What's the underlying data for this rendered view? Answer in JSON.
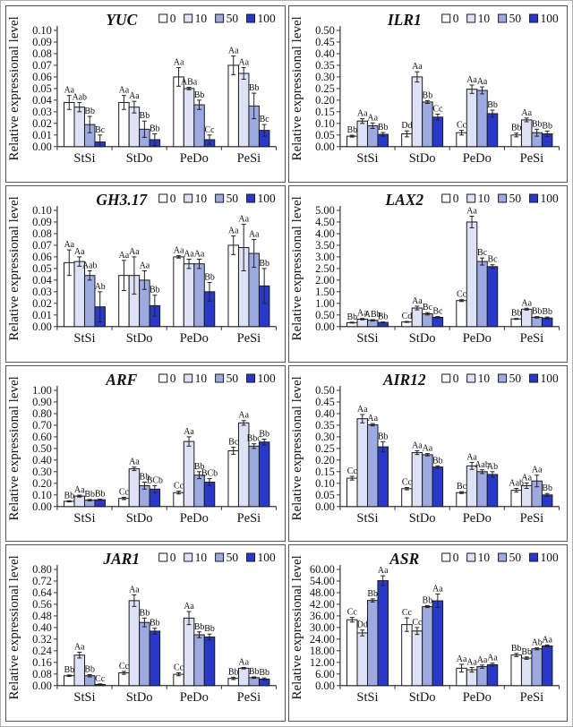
{
  "figure": {
    "ylabel": "Relative expressional level",
    "legend_labels": [
      "0",
      "10",
      "50",
      "100"
    ],
    "legend_position": "top-right",
    "categories": [
      "StSi",
      "StDo",
      "PeDo",
      "PeSi"
    ],
    "colors": {
      "series": [
        "#ffffff",
        "#dde2f6",
        "#9daae2",
        "#2838c8"
      ],
      "bar_stroke": "#1b1b1b",
      "axis": "#333333",
      "error_bar": "#222222",
      "panel_border": "#555555",
      "text": "#111111"
    }
  },
  "chart_data": [
    {
      "type": "bar",
      "title": "YUC",
      "ylabel": "Relative expressional level",
      "xlabel": "",
      "categories": [
        "StSi",
        "StDo",
        "PeDo",
        "PeSi"
      ],
      "ylim": [
        0,
        0.1
      ],
      "ystep": 0.01,
      "grid": false,
      "series": [
        {
          "name": "0",
          "values": [
            0.038,
            0.038,
            0.06,
            0.07
          ],
          "errors": [
            0.006,
            0.006,
            0.008,
            0.008
          ],
          "labels": [
            "Aa",
            "Aa",
            "Aa",
            "Aa"
          ]
        },
        {
          "name": "10",
          "values": [
            0.034,
            0.034,
            0.05,
            0.063
          ],
          "errors": [
            0.004,
            0.005,
            0.001,
            0.005
          ],
          "labels": [
            "Aab",
            "Aa",
            "ABa",
            "Aa"
          ]
        },
        {
          "name": "50",
          "values": [
            0.019,
            0.015,
            0.036,
            0.035
          ],
          "errors": [
            0.007,
            0.007,
            0.004,
            0.011
          ],
          "labels": [
            "Bb",
            "Bb",
            "Bb",
            "Bb"
          ]
        },
        {
          "name": "100",
          "values": [
            0.004,
            0.006,
            0.006,
            0.014
          ],
          "errors": [
            0.006,
            0.005,
            0.004,
            0.005
          ],
          "labels": [
            "Bc",
            "Bb",
            "Cc",
            "Bc"
          ]
        }
      ]
    },
    {
      "type": "bar",
      "title": "ILR1",
      "ylabel": "Relative expressional level",
      "xlabel": "",
      "categories": [
        "StSi",
        "StDo",
        "PeDo",
        "PeSi"
      ],
      "ylim": [
        0,
        0.5
      ],
      "ystep": 0.05,
      "grid": false,
      "series": [
        {
          "name": "0",
          "values": [
            0.045,
            0.055,
            0.06,
            0.05
          ],
          "errors": [
            0.004,
            0.013,
            0.01,
            0.008
          ],
          "labels": [
            "Bb",
            "Dd",
            "Cc",
            "Bb"
          ]
        },
        {
          "name": "10",
          "values": [
            0.11,
            0.3,
            0.247,
            0.115
          ],
          "errors": [
            0.01,
            0.022,
            0.018,
            0.008
          ],
          "labels": [
            "Aa",
            "Aa",
            "Aa",
            "Aa"
          ]
        },
        {
          "name": "50",
          "values": [
            0.09,
            0.192,
            0.242,
            0.06
          ],
          "errors": [
            0.012,
            0.006,
            0.015,
            0.015
          ],
          "labels": [
            "Aa",
            "Bb",
            "Aa",
            "Bb"
          ]
        },
        {
          "name": "100",
          "values": [
            0.053,
            0.127,
            0.142,
            0.055
          ],
          "errors": [
            0.008,
            0.013,
            0.015,
            0.012
          ],
          "labels": [
            "Bb",
            "Cc",
            "Bb",
            "Bb"
          ]
        }
      ]
    },
    {
      "type": "bar",
      "title": "GH3.17",
      "ylabel": "Relative expressional level",
      "xlabel": "",
      "categories": [
        "StSi",
        "StDo",
        "PeDo",
        "PeSi"
      ],
      "ylim": [
        0,
        0.1
      ],
      "ystep": 0.01,
      "grid": false,
      "series": [
        {
          "name": "0",
          "values": [
            0.055,
            0.044,
            0.06,
            0.07
          ],
          "errors": [
            0.011,
            0.013,
            0.001,
            0.008
          ],
          "labels": [
            "Aa",
            "Aa",
            "Aa",
            "Aa"
          ]
        },
        {
          "name": "10",
          "values": [
            0.056,
            0.044,
            0.054,
            0.068
          ],
          "errors": [
            0.004,
            0.016,
            0.004,
            0.02
          ],
          "labels": [
            "Aa",
            "Aa",
            "Aa",
            "Aa"
          ]
        },
        {
          "name": "50",
          "values": [
            0.044,
            0.04,
            0.054,
            0.063
          ],
          "errors": [
            0.004,
            0.008,
            0.004,
            0.012
          ],
          "labels": [
            "Aab",
            "Aa",
            "Aa",
            "Aa"
          ]
        },
        {
          "name": "100",
          "values": [
            0.017,
            0.018,
            0.03,
            0.035
          ],
          "errors": [
            0.013,
            0.009,
            0.008,
            0.015
          ],
          "labels": [
            "Ab",
            "Bb",
            "Bb",
            "Bb"
          ]
        }
      ]
    },
    {
      "type": "bar",
      "title": "LAX2",
      "ylabel": "Relative expressional level",
      "xlabel": "",
      "categories": [
        "StSi",
        "StDo",
        "PeDo",
        "PeSi"
      ],
      "ylim": [
        0,
        5.0
      ],
      "ystep": 0.5,
      "grid": false,
      "series": [
        {
          "name": "0",
          "values": [
            0.17,
            0.2,
            1.12,
            0.33
          ],
          "errors": [
            0.02,
            0.02,
            0.04,
            0.02
          ],
          "labels": [
            "Bb",
            "Cd",
            "Cc",
            "Bb"
          ]
        },
        {
          "name": "10",
          "values": [
            0.32,
            0.8,
            4.5,
            0.75
          ],
          "errors": [
            0.03,
            0.08,
            0.25,
            0.04
          ],
          "labels": [
            "Aa",
            "Aa",
            "Aa",
            "Aa"
          ]
        },
        {
          "name": "50",
          "values": [
            0.27,
            0.55,
            2.8,
            0.4
          ],
          "errors": [
            0.03,
            0.05,
            0.15,
            0.03
          ],
          "labels": [
            "ABb",
            "Bc",
            "Bc",
            "Bb"
          ]
        },
        {
          "name": "100",
          "values": [
            0.18,
            0.4,
            2.58,
            0.37
          ],
          "errors": [
            0.02,
            0.03,
            0.08,
            0.04
          ],
          "labels": [
            "Bb",
            "Bc",
            "Bc",
            "Bb"
          ]
        }
      ]
    },
    {
      "type": "bar",
      "title": "ARF",
      "ylabel": "Relative expressional level",
      "xlabel": "",
      "categories": [
        "StSi",
        "StDo",
        "PeDo",
        "PeSi"
      ],
      "ylim": [
        0,
        1.0
      ],
      "ystep": 0.1,
      "grid": false,
      "series": [
        {
          "name": "0",
          "values": [
            0.045,
            0.07,
            0.12,
            0.48
          ],
          "errors": [
            0.005,
            0.01,
            0.012,
            0.03
          ],
          "labels": [
            "Bb",
            "Cc",
            "Cc",
            "Bc"
          ]
        },
        {
          "name": "10",
          "values": [
            0.09,
            0.325,
            0.56,
            0.72
          ],
          "errors": [
            0.008,
            0.015,
            0.04,
            0.02
          ],
          "labels": [
            "Aa",
            "Aa",
            "Aa",
            "Aa"
          ]
        },
        {
          "name": "50",
          "values": [
            0.055,
            0.18,
            0.27,
            0.52
          ],
          "errors": [
            0.006,
            0.03,
            0.03,
            0.02
          ],
          "labels": [
            "Bb",
            "Bb",
            "Bb",
            "Bbc"
          ]
        },
        {
          "name": "100",
          "values": [
            0.058,
            0.15,
            0.21,
            0.555
          ],
          "errors": [
            0.005,
            0.03,
            0.03,
            0.025
          ],
          "labels": [
            "Bb",
            "BCb",
            "BCb",
            "Bb"
          ]
        }
      ]
    },
    {
      "type": "bar",
      "title": "AIR12",
      "ylabel": "Relative expressional level",
      "xlabel": "",
      "categories": [
        "StSi",
        "StDo",
        "PeDo",
        "PeSi"
      ],
      "ylim": [
        0,
        0.5
      ],
      "ystep": 0.05,
      "grid": false,
      "series": [
        {
          "name": "0",
          "values": [
            0.122,
            0.077,
            0.06,
            0.07
          ],
          "errors": [
            0.008,
            0.005,
            0.004,
            0.008
          ],
          "labels": [
            "Cc",
            "Cc",
            "Bc",
            "Aab"
          ]
        },
        {
          "name": "10",
          "values": [
            0.378,
            0.232,
            0.175,
            0.09
          ],
          "errors": [
            0.018,
            0.008,
            0.015,
            0.012
          ],
          "labels": [
            "Aa",
            "Aa",
            "Aa",
            "Aa"
          ]
        },
        {
          "name": "50",
          "values": [
            0.352,
            0.223,
            0.15,
            0.11
          ],
          "errors": [
            0.005,
            0.005,
            0.008,
            0.025
          ],
          "labels": [
            "Aa",
            "Aa",
            "Aab",
            "Aa"
          ]
        },
        {
          "name": "100",
          "values": [
            0.257,
            0.17,
            0.138,
            0.05
          ],
          "errors": [
            0.022,
            0.005,
            0.012,
            0.006
          ],
          "labels": [
            "Bb",
            "Bb",
            "Ab",
            "Bb"
          ]
        }
      ]
    },
    {
      "type": "bar",
      "title": "JAR1",
      "ylabel": "Relative expressional level",
      "xlabel": "",
      "categories": [
        "StSi",
        "StDo",
        "PeDo",
        "PeSi"
      ],
      "ylim": [
        0,
        0.8
      ],
      "ystep": 0.08,
      "grid": false,
      "series": [
        {
          "name": "0",
          "values": [
            0.068,
            0.088,
            0.078,
            0.05
          ],
          "errors": [
            0.005,
            0.01,
            0.01,
            0.008
          ],
          "labels": [
            "Bb",
            "Cc",
            "Cc",
            "Bb"
          ]
        },
        {
          "name": "10",
          "values": [
            0.21,
            0.585,
            0.465,
            0.12
          ],
          "errors": [
            0.02,
            0.04,
            0.045,
            0.005
          ],
          "labels": [
            "Aa",
            "Aa",
            "Aa",
            "Aa"
          ]
        },
        {
          "name": "50",
          "values": [
            0.068,
            0.435,
            0.35,
            0.055
          ],
          "errors": [
            0.008,
            0.03,
            0.02,
            0.005
          ],
          "labels": [
            "Bb",
            "Bb",
            "Bb",
            "Bb"
          ]
        },
        {
          "name": "100",
          "values": [
            0.008,
            0.375,
            0.335,
            0.045
          ],
          "errors": [
            0.004,
            0.02,
            0.02,
            0.008
          ],
          "labels": [
            "Cc",
            "Bb",
            "Bb",
            "Bb"
          ]
        }
      ]
    },
    {
      "type": "bar",
      "title": "ASR",
      "ylabel": "Relative expressional level",
      "xlabel": "",
      "categories": [
        "StSi",
        "StDo",
        "PeDo",
        "PeSi"
      ],
      "ylim": [
        0,
        60.0
      ],
      "ystep": 6.0,
      "grid": false,
      "series": [
        {
          "name": "0",
          "values": [
            34.0,
            31.5,
            9.0,
            15.8
          ],
          "errors": [
            1.2,
            3.5,
            2.0,
            0.8
          ],
          "labels": [
            "Cc",
            "Cc",
            "Aa",
            "Bb"
          ]
        },
        {
          "name": "10",
          "values": [
            27.2,
            28.2,
            8.2,
            14.2
          ],
          "errors": [
            1.5,
            1.8,
            1.2,
            0.6
          ],
          "labels": [
            "Dd",
            "Cc",
            "Aa",
            "Bb"
          ]
        },
        {
          "name": "50",
          "values": [
            44.0,
            40.8,
            9.8,
            19.0
          ],
          "errors": [
            0.8,
            0.5,
            0.8,
            0.5
          ],
          "labels": [
            "Bb",
            "Bb",
            "Aa",
            "Ab"
          ]
        },
        {
          "name": "100",
          "values": [
            54.2,
            43.8,
            10.8,
            20.5
          ],
          "errors": [
            2.5,
            3.5,
            0.8,
            0.5
          ],
          "labels": [
            "Aa",
            "Aa",
            "Aa",
            "Aa"
          ]
        }
      ]
    }
  ]
}
